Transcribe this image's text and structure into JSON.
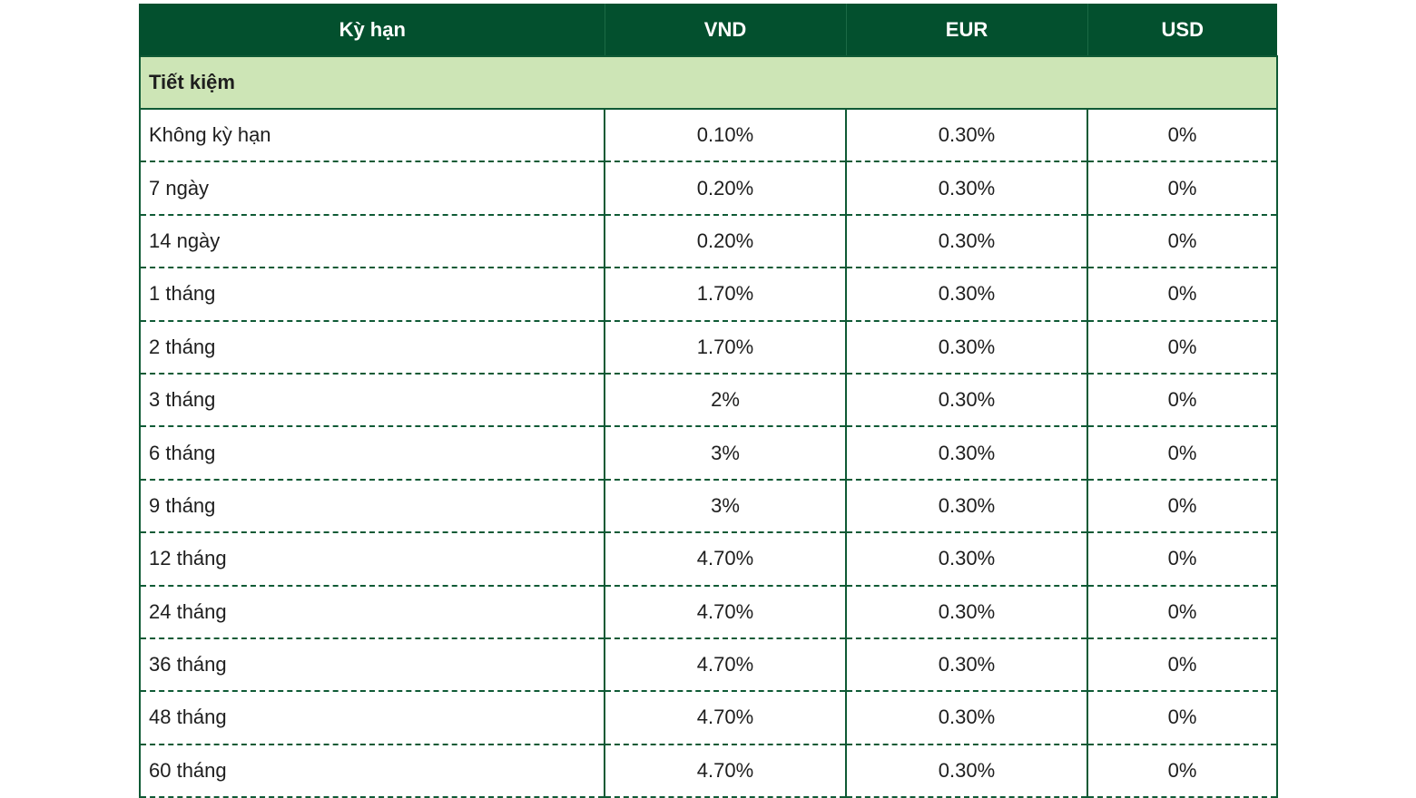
{
  "table": {
    "header": [
      "Kỳ hạn",
      "VND",
      "EUR",
      "USD"
    ],
    "section": "Tiết kiệm",
    "rows": [
      [
        "Không kỳ hạn",
        "0.10%",
        "0.30%",
        "0%"
      ],
      [
        "7 ngày",
        "0.20%",
        "0.30%",
        "0%"
      ],
      [
        "14 ngày",
        "0.20%",
        "0.30%",
        "0%"
      ],
      [
        "1 tháng",
        "1.70%",
        "0.30%",
        "0%"
      ],
      [
        "2 tháng",
        "1.70%",
        "0.30%",
        "0%"
      ],
      [
        "3 tháng",
        "2%",
        "0.30%",
        "0%"
      ],
      [
        "6 tháng",
        "3%",
        "0.30%",
        "0%"
      ],
      [
        "9 tháng",
        "3%",
        "0.30%",
        "0%"
      ],
      [
        "12 tháng",
        "4.70%",
        "0.30%",
        "0%"
      ],
      [
        "24 tháng",
        "4.70%",
        "0.30%",
        "0%"
      ],
      [
        "36 tháng",
        "4.70%",
        "0.30%",
        "0%"
      ],
      [
        "48 tháng",
        "4.70%",
        "0.30%",
        "0%"
      ],
      [
        "60 tháng",
        "4.70%",
        "0.30%",
        "0%"
      ]
    ]
  }
}
